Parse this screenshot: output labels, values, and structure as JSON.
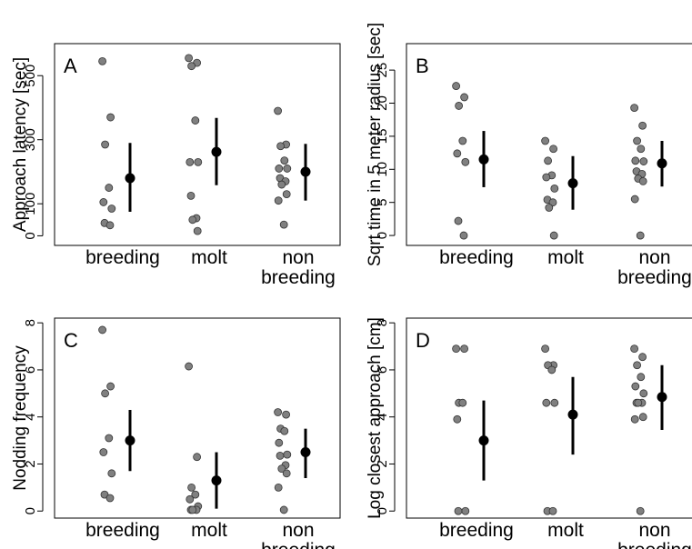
{
  "chart_data": [
    {
      "type": "scatter",
      "panel_label": "A",
      "ylabel": "Approach latency [sec]",
      "categories": [
        "breeding",
        "molt",
        "non\nbreeding"
      ],
      "yticks": [
        0,
        100,
        300,
        500
      ],
      "ylim": [
        -30,
        600
      ],
      "points": [
        [
          545,
          370,
          285,
          150,
          105,
          85,
          40,
          33
        ],
        [
          555,
          540,
          530,
          360,
          230,
          230,
          125,
          55,
          50,
          15
        ],
        [
          390,
          285,
          280,
          235,
          210,
          210,
          180,
          170,
          160,
          130,
          110,
          35
        ]
      ],
      "means": [
        180,
        262,
        200
      ],
      "err_low": [
        75,
        158,
        110
      ],
      "err_high": [
        290,
        368,
        287
      ]
    },
    {
      "type": "scatter",
      "panel_label": "B",
      "ylabel": "Sqrt time in 5 meter radius [sec]",
      "categories": [
        "breeding",
        "molt",
        "non\nbreeding"
      ],
      "yticks": [
        0,
        5,
        10,
        15,
        20,
        25
      ],
      "ylim": [
        -1.5,
        29
      ],
      "points": [
        [
          22.6,
          20.9,
          19.6,
          14.3,
          12.4,
          11.1,
          2.2,
          0
        ],
        [
          14.3,
          13.1,
          11.3,
          9.1,
          8.8,
          7.1,
          5.4,
          5.0,
          4.2,
          0
        ],
        [
          19.3,
          16.6,
          14.3,
          13.1,
          11.3,
          11.2,
          9.7,
          9.3,
          8.6,
          8.2,
          5.5,
          0
        ]
      ],
      "means": [
        11.5,
        7.9,
        10.9
      ],
      "err_low": [
        7.3,
        3.9,
        7.4
      ],
      "err_high": [
        15.8,
        12.0,
        14.3
      ]
    },
    {
      "type": "scatter",
      "panel_label": "C",
      "ylabel": "Nodding frequency",
      "categories": [
        "breeding",
        "molt",
        "non\nbreeding"
      ],
      "yticks": [
        0,
        2,
        4,
        6,
        8
      ],
      "ylim": [
        -0.3,
        8.2
      ],
      "points": [
        [
          7.7,
          5.3,
          5.0,
          3.1,
          2.5,
          1.6,
          0.7,
          0.55
        ],
        [
          6.15,
          2.3,
          1.0,
          0.7,
          0.5,
          0.2,
          0.05,
          0.05,
          0.05
        ],
        [
          4.2,
          4.1,
          3.5,
          3.4,
          2.9,
          2.4,
          2.35,
          1.95,
          1.8,
          1.6,
          1.0,
          0.05
        ]
      ],
      "means": [
        3.0,
        1.3,
        2.5
      ],
      "err_low": [
        1.7,
        0.1,
        1.4
      ],
      "err_high": [
        4.3,
        2.5,
        3.5
      ]
    },
    {
      "type": "scatter",
      "panel_label": "D",
      "ylabel": "Log closest approach [cm]",
      "categories": [
        "breeding",
        "molt",
        "non\nbreeding"
      ],
      "yticks": [
        0,
        2,
        4,
        6,
        8
      ],
      "ylim": [
        -0.3,
        8.2
      ],
      "points": [
        [
          6.9,
          6.9,
          4.6,
          4.6,
          3.9,
          0,
          0
        ],
        [
          6.9,
          6.2,
          6.2,
          6.0,
          4.6,
          4.6,
          0,
          0
        ],
        [
          6.9,
          6.55,
          6.2,
          5.7,
          5.3,
          5.0,
          4.6,
          4.6,
          4.6,
          4.0,
          3.9,
          0
        ]
      ],
      "means": [
        3.0,
        4.1,
        4.85
      ],
      "err_low": [
        1.3,
        2.4,
        3.45
      ],
      "err_high": [
        4.7,
        5.7,
        6.2
      ]
    }
  ]
}
